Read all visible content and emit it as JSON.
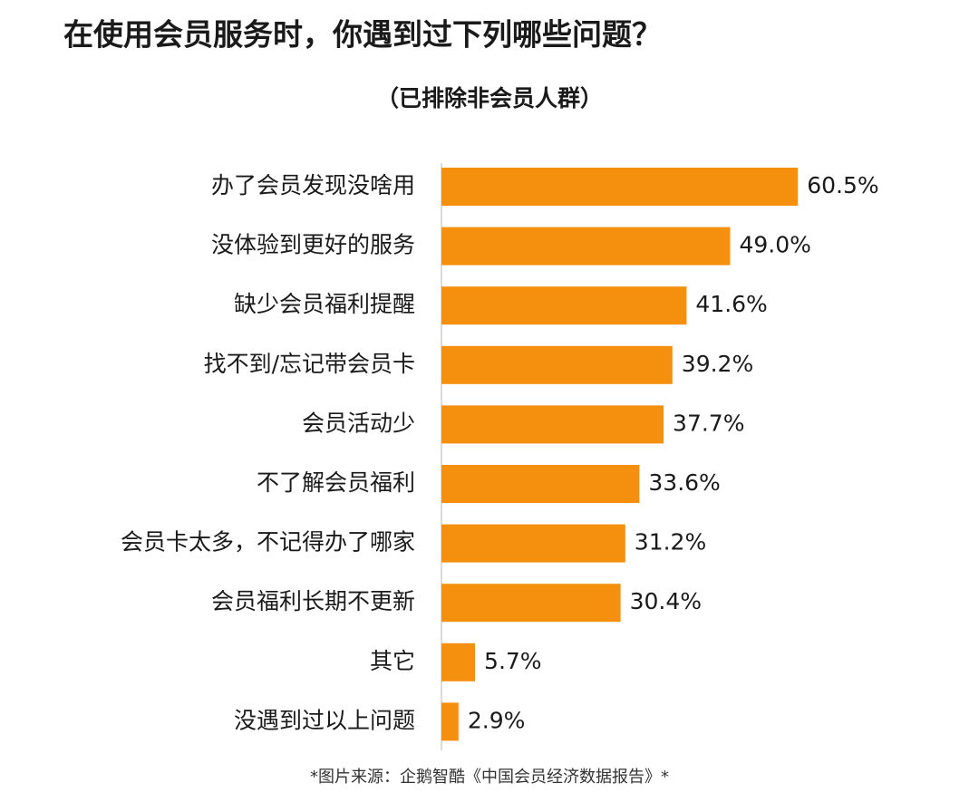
{
  "chart_data": {
    "type": "bar",
    "orientation": "horizontal",
    "title": "在使用会员服务时，你遇到过下列哪些问题？",
    "subtitle": "（已排除非会员人群）",
    "categories": [
      "办了会员发现没啥用",
      "没体验到更好的服务",
      "缺少会员福利提醒",
      "找不到/忘记带会员卡",
      "会员活动少",
      "不了解会员福利",
      "会员卡太多，不记得办了哪家",
      "会员福利长期不更新",
      "其它",
      "没遇到过以上问题"
    ],
    "values": [
      60.5,
      49.0,
      41.6,
      39.2,
      37.7,
      33.6,
      31.2,
      30.4,
      5.7,
      2.9
    ],
    "value_labels": [
      "60.5%",
      "49.0%",
      "41.6%",
      "39.2%",
      "37.7%",
      "33.6%",
      "31.2%",
      "30.4%",
      "5.7%",
      "2.9%"
    ],
    "color": "#f5900f",
    "source": "*图片来源：企鹅智酷《中国会员经济数据报告》*"
  }
}
